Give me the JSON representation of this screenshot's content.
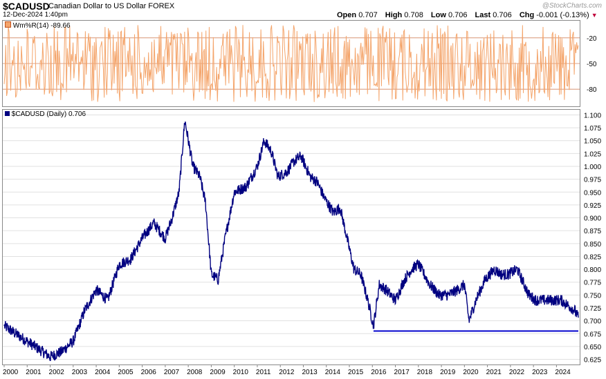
{
  "header": {
    "symbol": "$CADUSD",
    "description": "Canadian Dollar to US Dollar  FOREX",
    "datetime": "12-Dec-2024 1:40pm",
    "watermark": "@StockCharts.com",
    "open_label": "Open",
    "open_value": "0.707",
    "high_label": "High",
    "high_value": "0.708",
    "low_label": "Low",
    "low_value": "0.706",
    "last_label": "Last",
    "last_value": "0.706",
    "chg_label": "Chg",
    "chg_value": "-0.001 (-0.13%)"
  },
  "colors": {
    "price": "#000080",
    "indicator": "#f4a46a",
    "indicator_dark": "#c0501c",
    "grid": "#e0e0e0",
    "support": "#0000cc"
  },
  "chart_data": [
    {
      "type": "line",
      "name": "indicator",
      "legend": "Wm%R(14) -89.66",
      "ylim": [
        -100,
        0
      ],
      "y_ticks": [
        -20,
        -50,
        -80
      ],
      "y_tick_labels": [
        "-20",
        "-50",
        "-80"
      ],
      "x_range": [
        2000.0,
        2024.95
      ],
      "oscillation": "rapid oscillation between -5 and -95"
    },
    {
      "type": "line",
      "name": "price",
      "legend": "$CADUSD (Daily) 0.706",
      "ylim": [
        0.615,
        1.11
      ],
      "y_ticks": [
        0.625,
        0.65,
        0.675,
        0.7,
        0.725,
        0.75,
        0.775,
        0.8,
        0.825,
        0.85,
        0.875,
        0.9,
        0.925,
        0.95,
        0.975,
        1.0,
        1.025,
        1.05,
        1.075,
        1.1
      ],
      "y_tick_labels": [
        "0.625",
        "0.650",
        "0.675",
        "0.700",
        "0.725",
        "0.750",
        "0.775",
        "0.800",
        "0.825",
        "0.850",
        "0.875",
        "0.900",
        "0.925",
        "0.950",
        "0.975",
        "1.000",
        "1.025",
        "1.050",
        "1.075",
        "1.100"
      ],
      "x_tick_values": [
        2000.0,
        2001.0,
        2002.0,
        2003.0,
        2004.0,
        2005.0,
        2006.0,
        2007.0,
        2008.0,
        2009.0,
        2010.0,
        2011.0,
        2012.0,
        2013.0,
        2014.0,
        2015.0,
        2016.0,
        2017.0,
        2018.0,
        2019.0,
        2020.0,
        2021.0,
        2022.0,
        2023.0,
        2024.0
      ],
      "x_tick_labels": [
        "2000",
        "2001",
        "2002",
        "2003",
        "2004",
        "2005",
        "2006",
        "2007",
        "2008",
        "2009",
        "2010",
        "2011",
        "2012",
        "2013",
        "2014",
        "2015",
        "2016",
        "2017",
        "2018",
        "2019",
        "2020",
        "2021",
        "2022",
        "2023",
        "2024"
      ],
      "x": [
        2000.0,
        2000.5,
        2001.0,
        2001.5,
        2002.0,
        2002.5,
        2003.0,
        2003.5,
        2004.0,
        2004.5,
        2005.0,
        2005.5,
        2006.0,
        2006.5,
        2007.0,
        2007.3,
        2007.6,
        2007.85,
        2008.2,
        2008.5,
        2008.75,
        2009.0,
        2009.3,
        2009.6,
        2010.0,
        2010.5,
        2011.0,
        2011.3,
        2011.6,
        2011.9,
        2012.3,
        2012.6,
        2012.9,
        2013.3,
        2013.6,
        2013.9,
        2014.3,
        2014.6,
        2014.9,
        2015.2,
        2015.5,
        2015.8,
        2016.05,
        2016.3,
        2016.6,
        2017.0,
        2017.4,
        2017.7,
        2018.0,
        2018.5,
        2018.9,
        2019.3,
        2019.7,
        2020.0,
        2020.2,
        2020.5,
        2020.9,
        2021.3,
        2021.6,
        2021.9,
        2022.3,
        2022.6,
        2022.8,
        2023.1,
        2023.5,
        2023.8,
        2024.2,
        2024.5,
        2024.8,
        2024.95
      ],
      "y": [
        0.69,
        0.675,
        0.66,
        0.645,
        0.63,
        0.64,
        0.66,
        0.72,
        0.76,
        0.74,
        0.81,
        0.82,
        0.86,
        0.89,
        0.86,
        0.9,
        0.95,
        1.09,
        1.0,
        0.98,
        0.93,
        0.79,
        0.78,
        0.86,
        0.95,
        0.96,
        1.0,
        1.05,
        1.03,
        0.98,
        0.99,
        1.01,
        1.02,
        0.98,
        0.97,
        0.94,
        0.91,
        0.92,
        0.86,
        0.8,
        0.79,
        0.74,
        0.69,
        0.77,
        0.76,
        0.74,
        0.78,
        0.8,
        0.81,
        0.77,
        0.75,
        0.75,
        0.76,
        0.77,
        0.7,
        0.74,
        0.78,
        0.8,
        0.79,
        0.79,
        0.8,
        0.77,
        0.75,
        0.74,
        0.74,
        0.74,
        0.74,
        0.73,
        0.72,
        0.706
      ],
      "support_line": {
        "x": [
          2016.05,
          2024.95
        ],
        "y": [
          0.68,
          0.68
        ]
      }
    }
  ]
}
